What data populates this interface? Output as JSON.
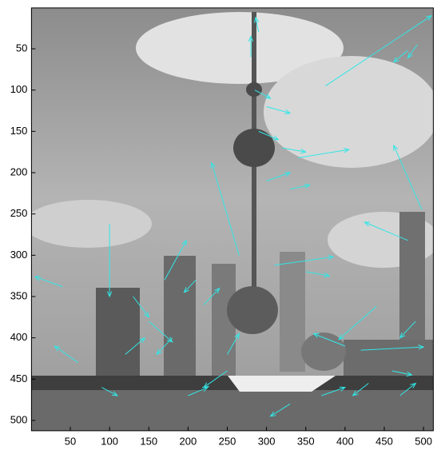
{
  "chart_data": {
    "type": "quiver",
    "color": "#33e6e6",
    "xlim": [
      0.5,
      512.5
    ],
    "ylim": [
      512.5,
      0.5
    ],
    "xticks": [
      50,
      100,
      150,
      200,
      250,
      300,
      350,
      400,
      450,
      500
    ],
    "yticks": [
      50,
      100,
      150,
      200,
      250,
      300,
      350,
      400,
      450,
      500
    ],
    "x": [
      375,
      480,
      492,
      265,
      340,
      100,
      498,
      480,
      290,
      310,
      420,
      440,
      170,
      40,
      280,
      285,
      300,
      290,
      320,
      330,
      300,
      210,
      220,
      130,
      150,
      180,
      250,
      350,
      400,
      460,
      490,
      60,
      90,
      200,
      330,
      370,
      430,
      470,
      120,
      250
    ],
    "y": [
      95,
      52,
      45,
      300,
      182,
      262,
      245,
      282,
      30,
      312,
      415,
      362,
      330,
      338,
      60,
      100,
      120,
      150,
      170,
      220,
      210,
      330,
      360,
      350,
      380,
      400,
      420,
      320,
      410,
      440,
      380,
      430,
      460,
      470,
      480,
      470,
      455,
      470,
      420,
      440
    ],
    "u": [
      135,
      -18,
      -12,
      -35,
      65,
      0,
      -36,
      -55,
      -4,
      75,
      80,
      -48,
      28,
      -35,
      0,
      20,
      30,
      25,
      30,
      25,
      30,
      -15,
      20,
      20,
      30,
      -20,
      15,
      30,
      -40,
      25,
      -20,
      -30,
      20,
      25,
      -25,
      30,
      -20,
      20,
      25,
      -30
    ],
    "v": [
      -85,
      14,
      16,
      -112,
      -10,
      88,
      -78,
      -22,
      -18,
      -10,
      -4,
      40,
      -48,
      -12,
      -25,
      10,
      8,
      10,
      5,
      -5,
      -10,
      15,
      -20,
      25,
      25,
      20,
      -25,
      5,
      -15,
      5,
      20,
      -20,
      10,
      -10,
      15,
      -10,
      15,
      -15,
      -20,
      20
    ]
  }
}
